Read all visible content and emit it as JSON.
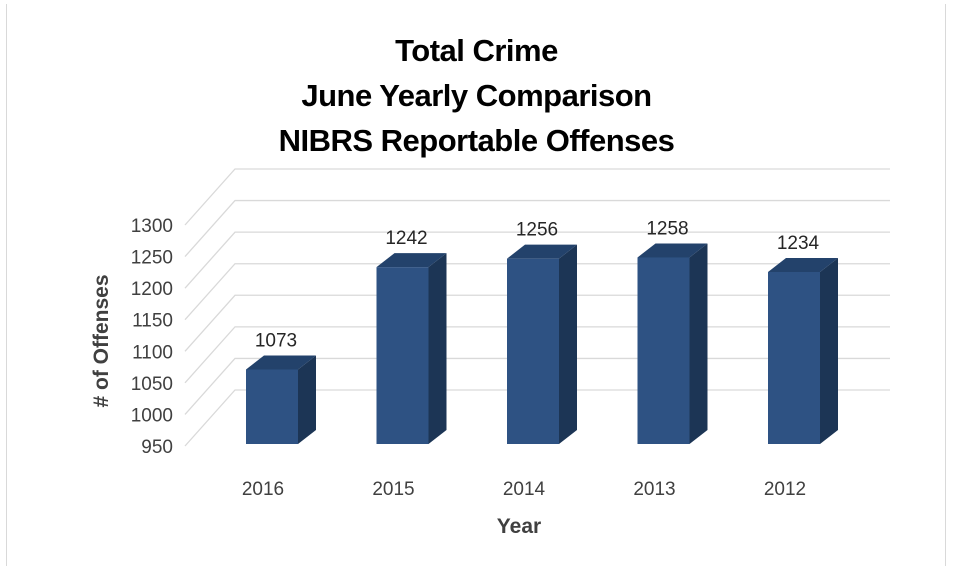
{
  "chart_data": {
    "type": "bar",
    "title_lines": [
      "Total Crime",
      "June Yearly Comparison",
      "NIBRS Reportable Offenses"
    ],
    "xlabel": "Year",
    "ylabel": "# of Offenses",
    "categories": [
      "2016",
      "2015",
      "2014",
      "2013",
      "2012"
    ],
    "values": [
      1073,
      1242,
      1256,
      1258,
      1234
    ],
    "ylim": [
      950,
      1300
    ],
    "yticks": [
      1300,
      1250,
      1200,
      1150,
      1100,
      1050,
      1000,
      950
    ],
    "data_labels": true,
    "grid": true,
    "legend": "none",
    "style": "3d-column",
    "colors": {
      "bar_front": "#2e5283",
      "bar_top": "#23426b",
      "bar_side": "#1c3555",
      "grid": "#d9d9d9"
    }
  }
}
